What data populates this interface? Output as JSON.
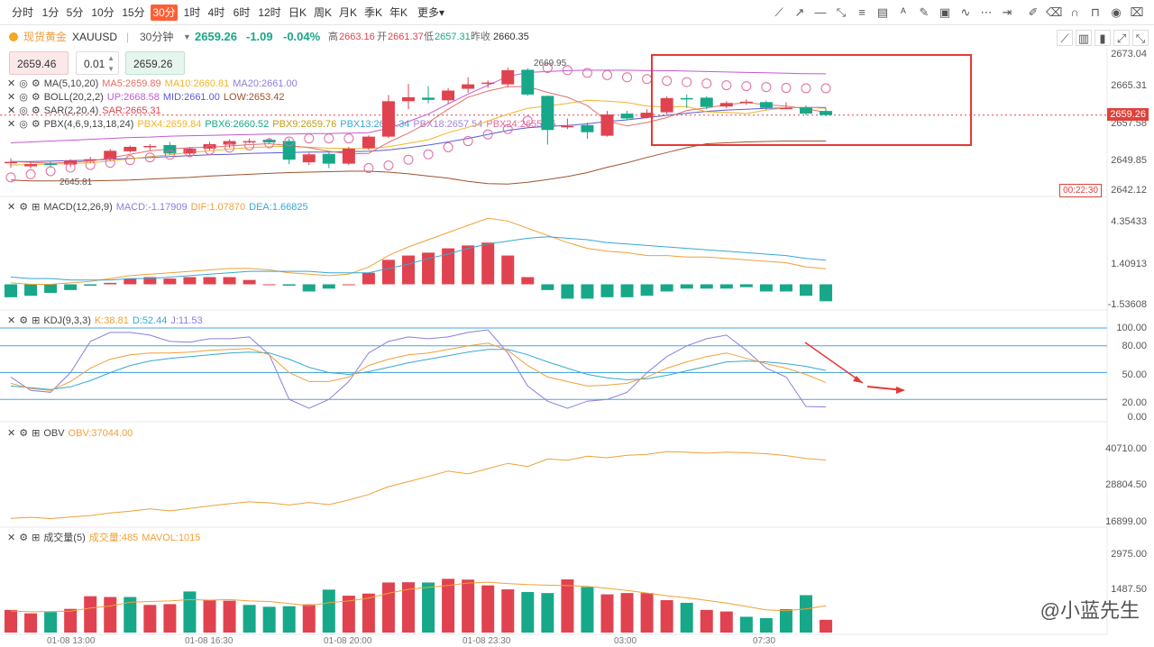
{
  "timeframes": [
    "分时",
    "1分",
    "5分",
    "10分",
    "15分",
    "30分",
    "1时",
    "4时",
    "6时",
    "12时",
    "日K",
    "周K",
    "月K",
    "季K",
    "年K",
    "更多▾"
  ],
  "active_timeframe": "30分",
  "toolbar_icons": [
    "trendline-icon",
    "ray-icon",
    "hline-icon",
    "arrow-icon",
    "fib-icon",
    "brush-icon",
    "image-icon",
    "wave-icon",
    "more-lines-icon",
    "edit-icon",
    "eraser-icon",
    "lock-icon",
    "eye-icon",
    "trash-icon"
  ],
  "symbol": {
    "name": "现货黄金",
    "code": "XAUUSD",
    "period": "30分钟",
    "price": "2659.26",
    "change": "-1.09",
    "change_pct": "-0.04%",
    "high_label": "高",
    "high": "2663.16",
    "open_label": "开",
    "open": "2661.37",
    "low_label": "低",
    "low": "2657.31",
    "prev_label": "昨收",
    "prev": "2660.35"
  },
  "order": {
    "sell": "2659.46",
    "qty": "0.01",
    "buy": "2659.26"
  },
  "legends": {
    "ma": {
      "name": "MA(5,10,20)",
      "a": "MA5:2659.89",
      "b": "MA10:2660.81",
      "c": "MA20:2661.00"
    },
    "boll": {
      "name": "BOLL(20,2,2)",
      "a": "UP:2668.58",
      "b": "MID:2661.00",
      "c": "LOW:2653.42"
    },
    "sar": {
      "name": "SAR(2,20,4)",
      "a": "SAR:2665.31"
    },
    "pbx": {
      "name": "PBX(4,6,9,13,18,24)",
      "a": "PBX4:2659.84",
      "b": "PBX6:2660.52",
      "c": "PBX9:2659.76",
      "d": "PBX13:2658.34",
      "e": "PBX18:2657.54",
      "f": "PBX24:2655.75"
    },
    "macd": {
      "name": "MACD(12,26,9)",
      "a": "MACD:-1.17909",
      "b": "DIF:1.07870",
      "c": "DEA:1.66825"
    },
    "kdj": {
      "name": "KDJ(9,3,3)",
      "a": "K:38.81",
      "b": "D:52.44",
      "c": "J:11.53"
    },
    "obv": {
      "name": "OBV",
      "a": "OBV:37044.00"
    },
    "vol": {
      "name": "成交量(5)",
      "a": "成交量:485",
      "b": "MAVOL:1015"
    }
  },
  "price_axis": [
    "2673.04",
    "2665.31",
    "2657.58",
    "2649.85",
    "2642.12"
  ],
  "current_price_label": "2659.26",
  "countdown": "00:22:30",
  "max_label": "2669.95",
  "min_label": "2645.81",
  "macd_axis": [
    "4.35433",
    "1.40913",
    "-1.53608"
  ],
  "kdj_axis": [
    "100.00",
    "80.00",
    "50.00",
    "20.00",
    "0.00"
  ],
  "obv_axis": [
    "40710.00",
    "28804.50",
    "16899.00"
  ],
  "vol_axis": [
    "2975.00",
    "1487.50"
  ],
  "x_axis": [
    "01-08 13:00",
    "01-08 16:30",
    "01-08 20:00",
    "01-08 23:30",
    "03:00",
    "07:30"
  ],
  "watermark": "@小蓝先生",
  "colors": {
    "up": "#e0434f",
    "down": "#17a889",
    "accent": "#ff5e35"
  },
  "chart_data": {
    "type": "candlestick",
    "candles": [
      {
        "o": 2648.5,
        "h": 2649.5,
        "l": 2647.4,
        "c": 2648.7
      },
      {
        "o": 2647.7,
        "h": 2648.8,
        "l": 2647.2,
        "c": 2648.2
      },
      {
        "o": 2648.3,
        "h": 2648.9,
        "l": 2647.4,
        "c": 2648.0
      },
      {
        "o": 2648.1,
        "h": 2649.3,
        "l": 2647.5,
        "c": 2649.0
      },
      {
        "o": 2649.0,
        "h": 2649.8,
        "l": 2648.4,
        "c": 2649.3
      },
      {
        "o": 2649.4,
        "h": 2651.6,
        "l": 2648.9,
        "c": 2651.2
      },
      {
        "o": 2651.1,
        "h": 2652.4,
        "l": 2650.8,
        "c": 2652.1
      },
      {
        "o": 2652.0,
        "h": 2652.7,
        "l": 2651.3,
        "c": 2652.3
      },
      {
        "o": 2652.5,
        "h": 2653.2,
        "l": 2650.3,
        "c": 2650.6
      },
      {
        "o": 2650.6,
        "h": 2652.1,
        "l": 2650.2,
        "c": 2651.7
      },
      {
        "o": 2651.7,
        "h": 2653.2,
        "l": 2651.3,
        "c": 2652.7
      },
      {
        "o": 2652.6,
        "h": 2653.8,
        "l": 2651.9,
        "c": 2653.4
      },
      {
        "o": 2653.3,
        "h": 2654.0,
        "l": 2652.9,
        "c": 2653.4
      },
      {
        "o": 2653.7,
        "h": 2654.1,
        "l": 2652.9,
        "c": 2653.1
      },
      {
        "o": 2653.4,
        "h": 2654.0,
        "l": 2648.2,
        "c": 2649.2
      },
      {
        "o": 2648.6,
        "h": 2650.8,
        "l": 2648.0,
        "c": 2650.4
      },
      {
        "o": 2650.5,
        "h": 2650.8,
        "l": 2647.3,
        "c": 2648.3
      },
      {
        "o": 2648.3,
        "h": 2652.1,
        "l": 2648.0,
        "c": 2651.7
      },
      {
        "o": 2651.8,
        "h": 2654.7,
        "l": 2651.4,
        "c": 2654.4
      },
      {
        "o": 2654.4,
        "h": 2663.8,
        "l": 2654.1,
        "c": 2662.4
      },
      {
        "o": 2662.4,
        "h": 2666.3,
        "l": 2660.6,
        "c": 2663.3
      },
      {
        "o": 2663.2,
        "h": 2665.8,
        "l": 2661.9,
        "c": 2662.7
      },
      {
        "o": 2662.6,
        "h": 2665.4,
        "l": 2661.8,
        "c": 2664.8
      },
      {
        "o": 2665.2,
        "h": 2667.8,
        "l": 2664.3,
        "c": 2666.2
      },
      {
        "o": 2666.4,
        "h": 2667.1,
        "l": 2665.4,
        "c": 2666.6
      },
      {
        "o": 2666.2,
        "h": 2670.0,
        "l": 2665.5,
        "c": 2669.4
      },
      {
        "o": 2669.5,
        "h": 2669.8,
        "l": 2663.6,
        "c": 2663.9
      },
      {
        "o": 2663.6,
        "h": 2663.7,
        "l": 2652.6,
        "c": 2655.9
      },
      {
        "o": 2656.7,
        "h": 2658.5,
        "l": 2656.1,
        "c": 2656.8
      },
      {
        "o": 2657.0,
        "h": 2657.6,
        "l": 2653.9,
        "c": 2655.4
      },
      {
        "o": 2654.6,
        "h": 2660.2,
        "l": 2654.4,
        "c": 2659.4
      },
      {
        "o": 2659.6,
        "h": 2660.2,
        "l": 2658.1,
        "c": 2658.5
      },
      {
        "o": 2658.7,
        "h": 2660.6,
        "l": 2658.5,
        "c": 2659.8
      },
      {
        "o": 2659.9,
        "h": 2663.5,
        "l": 2659.4,
        "c": 2663.1
      },
      {
        "o": 2663.1,
        "h": 2663.9,
        "l": 2660.9,
        "c": 2663.0
      },
      {
        "o": 2663.2,
        "h": 2663.5,
        "l": 2660.6,
        "c": 2661.1
      },
      {
        "o": 2661.2,
        "h": 2662.4,
        "l": 2660.8,
        "c": 2662.0
      },
      {
        "o": 2662.0,
        "h": 2662.8,
        "l": 2661.6,
        "c": 2662.3
      },
      {
        "o": 2662.2,
        "h": 2662.5,
        "l": 2660.4,
        "c": 2660.9
      },
      {
        "o": 2660.9,
        "h": 2662.2,
        "l": 2660.6,
        "c": 2660.9
      },
      {
        "o": 2661.0,
        "h": 2661.5,
        "l": 2659.2,
        "c": 2659.6
      },
      {
        "o": 2660.2,
        "h": 2660.8,
        "l": 2659.0,
        "c": 2659.26
      }
    ],
    "ma5": [
      2648.8,
      2648.6,
      2648.4,
      2648.6,
      2648.9,
      2649.6,
      2650.4,
      2651.2,
      2651.6,
      2651.9,
      2652.0,
      2652.3,
      2652.6,
      2652.8,
      2652.4,
      2651.9,
      2651.1,
      2650.5,
      2650.6,
      2653.1,
      2655.2,
      2657.6,
      2660.6,
      2663.3,
      2664.7,
      2665.7,
      2665.7,
      2664.4,
      2663.3,
      2661.4,
      2657.9,
      2656.8,
      2657.6,
      2658.7,
      2660.3,
      2660.9,
      2661.6,
      2662.1,
      2661.6,
      2661.3,
      2660.7,
      2659.89
    ],
    "ma10": [
      2648.0,
      2648.1,
      2648.2,
      2648.3,
      2648.5,
      2648.9,
      2649.4,
      2649.9,
      2650.3,
      2650.8,
      2651.2,
      2651.6,
      2651.9,
      2652.1,
      2652.2,
      2652.0,
      2651.8,
      2651.7,
      2651.7,
      2652.1,
      2652.9,
      2653.7,
      2655.3,
      2656.5,
      2657.9,
      2659.5,
      2660.8,
      2661.3,
      2661.9,
      2662.6,
      2662.4,
      2662.1,
      2661.3,
      2661.1,
      2661.2,
      2660.0,
      2659.9,
      2659.6,
      2660.4,
      2660.9,
      2661.0,
      2660.81
    ],
    "boll_up": [
      2653.0,
      2653.2,
      2653.4,
      2653.6,
      2653.8,
      2654.0,
      2654.2,
      2654.3,
      2654.5,
      2654.6,
      2654.7,
      2654.8,
      2654.9,
      2655.0,
      2655.0,
      2655.1,
      2655.1,
      2655.2,
      2655.3,
      2656.3,
      2657.8,
      2659.5,
      2661.8,
      2664.0,
      2666.0,
      2668.0,
      2668.9,
      2669.1,
      2669.3,
      2669.4,
      2669.4,
      2669.4,
      2669.3,
      2669.3,
      2669.2,
      2669.1,
      2669.0,
      2668.9,
      2668.8,
      2668.7,
      2668.6,
      2668.58
    ],
    "boll_mid": [
      2648.8,
      2648.8,
      2648.9,
      2649.0,
      2649.1,
      2649.3,
      2649.5,
      2649.7,
      2649.9,
      2650.1,
      2650.3,
      2650.4,
      2650.6,
      2650.7,
      2650.8,
      2650.9,
      2650.9,
      2651.0,
      2651.1,
      2651.4,
      2651.9,
      2652.5,
      2653.2,
      2654.0,
      2654.9,
      2655.8,
      2656.4,
      2656.7,
      2656.9,
      2657.3,
      2657.8,
      2658.2,
      2658.7,
      2659.2,
      2659.7,
      2660.1,
      2660.4,
      2660.6,
      2660.8,
      2660.9,
      2661.0,
      2661.0
    ],
    "boll_low": [
      2644.6,
      2644.4,
      2644.4,
      2644.4,
      2644.4,
      2644.5,
      2644.6,
      2644.8,
      2645.0,
      2645.2,
      2645.5,
      2645.7,
      2645.9,
      2646.1,
      2646.3,
      2646.4,
      2646.5,
      2646.6,
      2646.6,
      2646.4,
      2646.0,
      2645.5,
      2645.0,
      2644.3,
      2643.8,
      2643.7,
      2644.1,
      2644.7,
      2645.4,
      2646.3,
      2647.5,
      2648.5,
      2649.7,
      2650.8,
      2651.9,
      2652.8,
      2653.0,
      2653.2,
      2653.3,
      2653.4,
      2653.4,
      2653.42
    ],
    "sar": [
      2645.2,
      2645.9,
      2646.6,
      2647.4,
      2648.0,
      2648.5,
      2649.1,
      2649.7,
      2650.3,
      2650.9,
      2651.4,
      2651.9,
      2652.4,
      2652.9,
      2653.3,
      2654.0,
      2654.0,
      2654.0,
      2647.3,
      2647.9,
      2649.2,
      2650.4,
      2652.0,
      2653.4,
      2654.9,
      2656.1,
      2658.0,
      2669.9,
      2669.4,
      2668.8,
      2668.3,
      2667.8,
      2667.4,
      2667.0,
      2666.7,
      2666.4,
      2666.0,
      2665.8,
      2665.6,
      2665.4,
      2665.31,
      2665.31
    ],
    "macd": [
      -0.9,
      -0.8,
      -0.6,
      -0.4,
      -0.1,
      0.1,
      0.4,
      0.5,
      0.4,
      0.5,
      0.5,
      0.5,
      0.3,
      0.0,
      -0.1,
      -0.5,
      -0.3,
      0.0,
      0.8,
      1.7,
      2.0,
      2.2,
      2.5,
      2.7,
      2.9,
      2.0,
      0.5,
      -0.4,
      -1.0,
      -1.0,
      -0.9,
      -0.9,
      -0.8,
      -0.5,
      -0.3,
      -0.3,
      -0.3,
      -0.2,
      -0.5,
      -0.5,
      -0.8,
      -1.18
    ],
    "dif": [
      0.1,
      0.0,
      0.0,
      0.1,
      0.2,
      0.4,
      0.6,
      0.7,
      0.8,
      0.9,
      1.0,
      1.1,
      1.1,
      1.0,
      0.8,
      0.7,
      0.6,
      0.7,
      1.2,
      2.0,
      2.6,
      3.1,
      3.6,
      4.1,
      4.6,
      4.4,
      3.9,
      3.4,
      2.9,
      2.5,
      2.3,
      2.2,
      2.0,
      2.0,
      1.9,
      1.9,
      1.8,
      1.7,
      1.6,
      1.5,
      1.2,
      1.08
    ],
    "dea": [
      0.5,
      0.4,
      0.4,
      0.3,
      0.3,
      0.3,
      0.4,
      0.4,
      0.5,
      0.6,
      0.7,
      0.8,
      0.9,
      0.9,
      0.9,
      0.9,
      0.8,
      0.8,
      0.8,
      1.1,
      1.4,
      1.8,
      2.1,
      2.5,
      2.8,
      3.0,
      3.2,
      3.3,
      3.2,
      3.1,
      2.9,
      2.8,
      2.7,
      2.6,
      2.5,
      2.4,
      2.3,
      2.2,
      2.1,
      2.0,
      1.8,
      1.67
    ],
    "kdj_k": [
      38,
      32,
      30,
      40,
      55,
      65,
      70,
      72,
      72,
      73,
      75,
      76,
      77,
      70,
      50,
      40,
      40,
      45,
      58,
      65,
      70,
      72,
      76,
      80,
      83,
      75,
      58,
      45,
      40,
      35,
      36,
      38,
      45,
      55,
      62,
      68,
      72,
      66,
      60,
      55,
      48,
      38.81
    ],
    "kdj_d": [
      35,
      33,
      31,
      34,
      41,
      50,
      58,
      63,
      66,
      68,
      70,
      72,
      73,
      72,
      65,
      56,
      50,
      48,
      51,
      56,
      61,
      65,
      69,
      73,
      76,
      76,
      70,
      62,
      55,
      48,
      44,
      42,
      43,
      47,
      52,
      57,
      62,
      63,
      62,
      60,
      57,
      52.44
    ],
    "kdj_j": [
      45,
      30,
      28,
      50,
      85,
      95,
      95,
      92,
      85,
      84,
      88,
      88,
      90,
      70,
      20,
      10,
      20,
      40,
      72,
      85,
      90,
      88,
      90,
      95,
      98,
      72,
      35,
      18,
      10,
      18,
      20,
      28,
      50,
      68,
      80,
      88,
      92,
      75,
      55,
      45,
      12,
      11.53
    ],
    "obv": [
      18300,
      18600,
      18200,
      18700,
      19200,
      20000,
      20600,
      21300,
      20700,
      21500,
      22300,
      23000,
      23600,
      23300,
      22600,
      23400,
      22700,
      24200,
      26000,
      28500,
      30100,
      31800,
      33500,
      32600,
      34300,
      36000,
      35000,
      37400,
      37000,
      38300,
      37800,
      38600,
      38900,
      39800,
      39600,
      39300,
      39600,
      39400,
      39100,
      38500,
      37600,
      37044
    ],
    "volume": [
      860,
      730,
      780,
      900,
      1380,
      1350,
      1350,
      1050,
      1080,
      1560,
      1230,
      1210,
      1050,
      980,
      1000,
      1070,
      1630,
      1400,
      1480,
      1900,
      1910,
      1900,
      2040,
      2010,
      1790,
      1640,
      1540,
      1500,
      2020,
      1730,
      1450,
      1500,
      1500,
      1230,
      1130,
      860,
      800,
      600,
      550,
      890,
      1420,
      485
    ],
    "volume_dir": [
      "up",
      "up",
      "down",
      "up",
      "up",
      "up",
      "down",
      "up",
      "up",
      "down",
      "up",
      "up",
      "down",
      "down",
      "down",
      "up",
      "down",
      "up",
      "up",
      "up",
      "up",
      "down",
      "up",
      "up",
      "up",
      "up",
      "down",
      "down",
      "up",
      "down",
      "up",
      "up",
      "up",
      "up",
      "down",
      "up",
      "up",
      "down",
      "down",
      "down",
      "down",
      "up"
    ],
    "mavol": [
      820,
      790,
      800,
      810,
      930,
      1010,
      1150,
      1180,
      1200,
      1250,
      1230,
      1250,
      1200,
      1180,
      1100,
      1020,
      1140,
      1200,
      1310,
      1490,
      1640,
      1720,
      1790,
      1880,
      1910,
      1860,
      1820,
      1800,
      1780,
      1750,
      1680,
      1600,
      1500,
      1400,
      1320,
      1220,
      1120,
      990,
      860,
      830,
      900,
      1015
    ]
  }
}
